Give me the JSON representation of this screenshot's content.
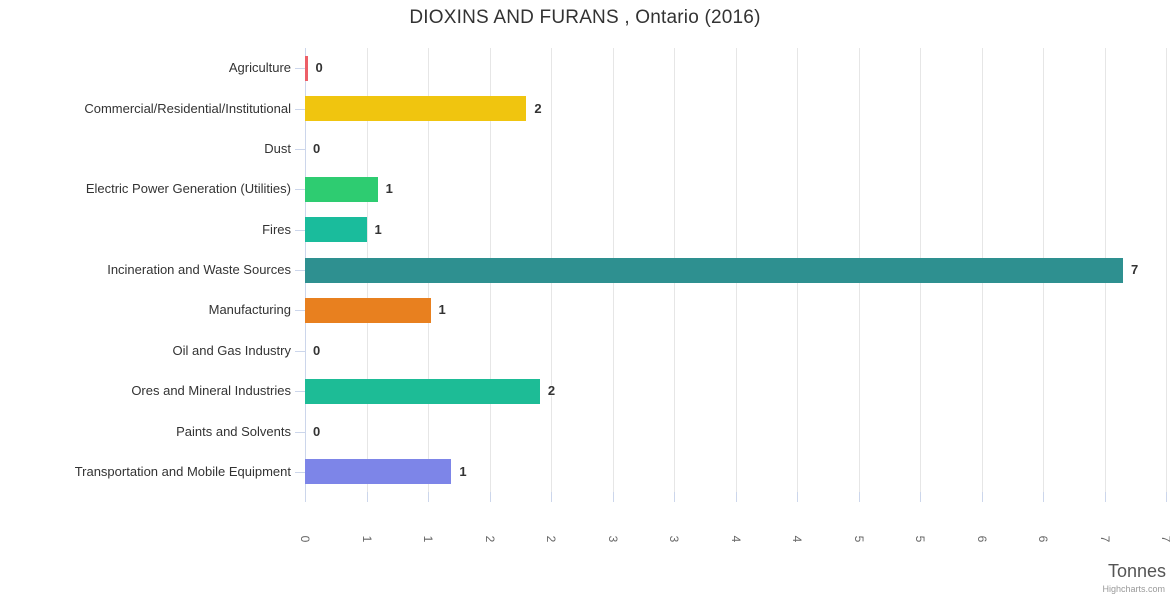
{
  "title": "DIOXINS AND FURANS , Ontario (2016)",
  "credits_label": "Highcharts.com",
  "chart_data": {
    "type": "bar",
    "orientation": "horizontal",
    "title": "DIOXINS AND FURANS , Ontario (2016)",
    "xlabel": "Tonnes",
    "ylabel": "",
    "xlim": [
      0,
      7
    ],
    "grid": true,
    "legend": false,
    "tick_interval": 0.5,
    "tick_labels": [
      "0",
      "1",
      "1",
      "2",
      "2",
      "3",
      "3",
      "4",
      "4",
      "5",
      "5",
      "6",
      "6",
      "7",
      "7"
    ],
    "categories": [
      "Agriculture",
      "Commercial/Residential/Institutional",
      "Dust",
      "Electric Power Generation (Utilities)",
      "Fires",
      "Incineration and Waste Sources",
      "Manufacturing",
      "Oil and Gas Industry",
      "Ores and Mineral Industries",
      "Paints and Solvents",
      "Transportation and Mobile Equipment"
    ],
    "values": [
      0.02,
      1.8,
      0,
      0.59,
      0.5,
      6.65,
      1.02,
      0,
      1.91,
      0,
      1.19
    ],
    "value_labels": [
      "0",
      "2",
      "0",
      "1",
      "1",
      "7",
      "1",
      "0",
      "2",
      "0",
      "1"
    ],
    "colors": [
      "#ed5f68",
      "#f0c50f",
      "#cccccc",
      "#2ecc71",
      "#1abc9c",
      "#2e9090",
      "#e8801f",
      "#cccccc",
      "#1dbc96",
      "#cccccc",
      "#7d85e8"
    ]
  }
}
